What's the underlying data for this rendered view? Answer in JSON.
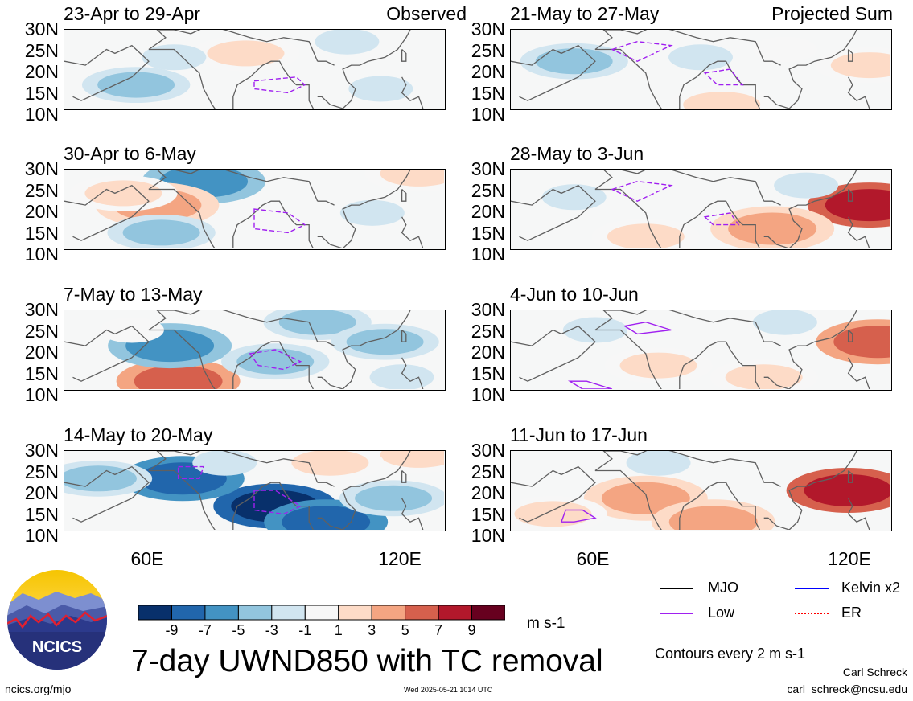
{
  "chart_data": [
    {
      "type": "heatmap",
      "title": "23-Apr to 29-Apr",
      "corner_label": "Observed",
      "column": "observed",
      "y_ticks": [
        "30N",
        "25N",
        "20N",
        "15N",
        "10N"
      ],
      "ylim": [
        10,
        30
      ],
      "xlim": [
        40,
        130
      ],
      "features": {
        "low": [
          [
            [
              85,
              17
            ],
            [
              95,
              18
            ],
            [
              97,
              16
            ],
            [
              93,
              14
            ],
            [
              85,
              15
            ]
          ]
        ]
      },
      "blobs": [
        {
          "lon": 57,
          "lat": 16,
          "value": -3
        },
        {
          "lon": 83,
          "lat": 24,
          "value": 3
        },
        {
          "lon": 107,
          "lat": 27,
          "value": -1
        },
        {
          "lon": 66,
          "lat": 23,
          "value": -1
        },
        {
          "lon": 115,
          "lat": 15,
          "value": -1
        }
      ]
    },
    {
      "type": "heatmap",
      "title": "30-Apr to 6-May",
      "corner_label": "",
      "column": "observed",
      "y_ticks": [
        "30N",
        "25N",
        "20N",
        "15N",
        "10N"
      ],
      "ylim": [
        10,
        30
      ],
      "xlim": [
        40,
        130
      ],
      "features": {
        "low": [
          [
            [
              85,
              20
            ],
            [
              93,
              19
            ],
            [
              97,
              16
            ],
            [
              93,
              14
            ],
            [
              85,
              15
            ]
          ]
        ]
      },
      "blobs": [
        {
          "lon": 73,
          "lat": 27,
          "value": -5
        },
        {
          "lon": 62,
          "lat": 21,
          "value": 5
        },
        {
          "lon": 54,
          "lat": 24,
          "value": 3
        },
        {
          "lon": 124,
          "lat": 29,
          "value": 3
        },
        {
          "lon": 63,
          "lat": 14,
          "value": -3
        },
        {
          "lon": 113,
          "lat": 19,
          "value": -1
        }
      ]
    },
    {
      "type": "heatmap",
      "title": "7-May to 13-May",
      "corner_label": "",
      "column": "observed",
      "y_ticks": [
        "30N",
        "25N",
        "20N",
        "15N",
        "10N"
      ],
      "ylim": [
        10,
        30
      ],
      "xlim": [
        40,
        130
      ],
      "features": {
        "low": [
          [
            [
              84,
              19
            ],
            [
              90,
              20
            ],
            [
              96,
              17
            ],
            [
              92,
              15
            ],
            [
              86,
              16
            ]
          ]
        ]
      },
      "blobs": [
        {
          "lon": 67,
          "lat": 12,
          "value": 7
        },
        {
          "lon": 65,
          "lat": 21,
          "value": -5
        },
        {
          "lon": 90,
          "lat": 17,
          "value": -3
        },
        {
          "lon": 100,
          "lat": 27,
          "value": -3
        },
        {
          "lon": 116,
          "lat": 22,
          "value": -3
        },
        {
          "lon": 56,
          "lat": 25,
          "value": 1
        },
        {
          "lon": 120,
          "lat": 13,
          "value": -1
        }
      ]
    },
    {
      "type": "heatmap",
      "title": "14-May to 20-May",
      "corner_label": "",
      "column": "observed",
      "y_ticks": [
        "30N",
        "25N",
        "20N",
        "15N",
        "10N"
      ],
      "ylim": [
        10,
        30
      ],
      "xlim": [
        40,
        130
      ],
      "features": {
        "low": [
          [
            [
              67,
              26
            ],
            [
              73,
              26
            ],
            [
              72,
              23
            ],
            [
              67,
              23
            ]
          ],
          [
            [
              85,
              20
            ],
            [
              90,
              20
            ],
            [
              96,
              16
            ],
            [
              92,
              14
            ],
            [
              85,
              15
            ]
          ]
        ]
      },
      "blobs": [
        {
          "lon": 90,
          "lat": 16,
          "value": -9
        },
        {
          "lon": 68,
          "lat": 23,
          "value": -7
        },
        {
          "lon": 102,
          "lat": 12,
          "value": -7
        },
        {
          "lon": 118,
          "lat": 18,
          "value": -3
        },
        {
          "lon": 48,
          "lat": 23,
          "value": -3
        },
        {
          "lon": 124,
          "lat": 29,
          "value": 3
        },
        {
          "lon": 103,
          "lat": 27,
          "value": 3
        },
        {
          "lon": 78,
          "lat": 27,
          "value": -1
        }
      ]
    },
    {
      "type": "heatmap",
      "title": "21-May to 27-May",
      "corner_label": "Projected Sum",
      "column": "projected",
      "y_ticks": [
        "30N",
        "25N",
        "20N",
        "15N",
        "10N"
      ],
      "ylim": [
        10,
        30
      ],
      "xlim": [
        40,
        130
      ],
      "features": {
        "low": [
          [
            [
              64,
              25
            ],
            [
              70,
              27
            ],
            [
              78,
              26
            ],
            [
              70,
              22
            ]
          ],
          [
            [
              86,
              19
            ],
            [
              92,
              20
            ],
            [
              95,
              16
            ],
            [
              89,
              16
            ]
          ]
        ]
      },
      "blobs": [
        {
          "lon": 90,
          "lat": 11,
          "value": 3
        },
        {
          "lon": 55,
          "lat": 22,
          "value": -3
        },
        {
          "lon": 85,
          "lat": 23,
          "value": -1
        },
        {
          "lon": 125,
          "lat": 21,
          "value": 3
        },
        {
          "lon": 105,
          "lat": 25,
          "value": 1
        }
      ]
    },
    {
      "type": "heatmap",
      "title": "28-May to 3-Jun",
      "corner_label": "",
      "column": "projected",
      "y_ticks": [
        "30N",
        "25N",
        "20N",
        "15N",
        "10N"
      ],
      "ylim": [
        10,
        30
      ],
      "xlim": [
        40,
        130
      ],
      "features": {
        "low": [
          [
            [
              64,
              25
            ],
            [
              70,
              27
            ],
            [
              78,
              26
            ],
            [
              70,
              22
            ]
          ],
          [
            [
              86,
              18
            ],
            [
              92,
              19
            ],
            [
              94,
              16
            ],
            [
              88,
              16
            ]
          ]
        ]
      },
      "blobs": [
        {
          "lon": 125,
          "lat": 21,
          "value": 9
        },
        {
          "lon": 102,
          "lat": 15,
          "value": 5
        },
        {
          "lon": 72,
          "lat": 13,
          "value": 3
        },
        {
          "lon": 55,
          "lat": 23,
          "value": -1
        },
        {
          "lon": 110,
          "lat": 26,
          "value": -1
        }
      ]
    },
    {
      "type": "heatmap",
      "title": "4-Jun to 10-Jun",
      "corner_label": "",
      "column": "projected",
      "y_ticks": [
        "30N",
        "25N",
        "20N",
        "15N",
        "10N"
      ],
      "ylim": [
        10,
        30
      ],
      "xlim": [
        40,
        130
      ],
      "features": {
        "low": [
          [
            [
              54,
              12
            ],
            [
              58,
              12
            ],
            [
              64,
              10
            ],
            [
              57,
              10
            ]
          ],
          [
            [
              67,
              26
            ],
            [
              72,
              27
            ],
            [
              78,
              25
            ],
            [
              70,
              24
            ]
          ]
        ]
      },
      "blobs": [
        {
          "lon": 127,
          "lat": 22,
          "value": 7
        },
        {
          "lon": 75,
          "lat": 16,
          "value": 3
        },
        {
          "lon": 100,
          "lat": 13,
          "value": 3
        },
        {
          "lon": 60,
          "lat": 25,
          "value": -1
        },
        {
          "lon": 105,
          "lat": 27,
          "value": -1
        }
      ]
    },
    {
      "type": "heatmap",
      "title": "11-Jun to 17-Jun",
      "corner_label": "",
      "column": "projected",
      "y_ticks": [
        "30N",
        "25N",
        "20N",
        "15N",
        "10N"
      ],
      "ylim": [
        10,
        30
      ],
      "xlim": [
        40,
        130
      ],
      "features": {
        "low": [
          [
            [
              53,
              15
            ],
            [
              57,
              15
            ],
            [
              60,
              13
            ],
            [
              55,
              12
            ],
            [
              52,
              12
            ]
          ]
        ]
      },
      "blobs": [
        {
          "lon": 120,
          "lat": 20,
          "value": 9
        },
        {
          "lon": 72,
          "lat": 18,
          "value": 5
        },
        {
          "lon": 88,
          "lat": 12,
          "value": 5
        },
        {
          "lon": 50,
          "lat": 14,
          "value": 3
        },
        {
          "lon": 75,
          "lat": 27,
          "value": -1
        }
      ]
    }
  ],
  "x_ticks": [
    "60E",
    "120E"
  ],
  "colorbar": {
    "labels": [
      "-9",
      "-7",
      "-5",
      "-3",
      "-1",
      "1",
      "3",
      "5",
      "7",
      "9"
    ],
    "levels": [
      -9,
      -7,
      -5,
      -3,
      -1,
      1,
      3,
      5,
      7,
      9
    ],
    "colors": [
      "#08306b",
      "#2166ac",
      "#4393c3",
      "#92c5de",
      "#d1e5f0",
      "#f7f7f7",
      "#fddbc7",
      "#f4a582",
      "#d6604d",
      "#b2182b",
      "#67001f"
    ],
    "units": "m s-1"
  },
  "legend": [
    {
      "label": "MJO",
      "color": "#000000"
    },
    {
      "label": "Kelvin x2",
      "color": "#0000ff"
    },
    {
      "label": "Low",
      "color": "#a020f0"
    },
    {
      "label": "ER",
      "color": "#ff0000"
    }
  ],
  "title": "7-day UWND850 with TC removal",
  "contour_note": "Contours every 2 m s-1",
  "author": "Carl Schreck",
  "email": "carl_schreck@ncsu.edu",
  "site": "ncics.org/mjo",
  "timestamp": "Wed 2025-05-21 1014 UTC",
  "logo_text": "NCICS",
  "colors": {
    "coast": "#606060",
    "low_contour": "#a020f0"
  }
}
